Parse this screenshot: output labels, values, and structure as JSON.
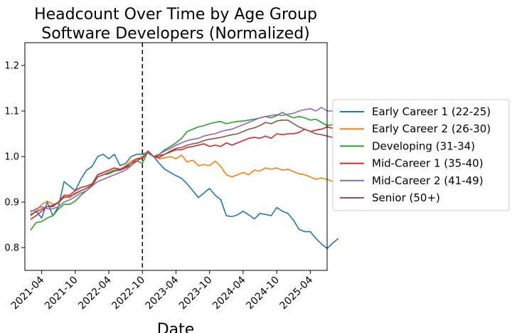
{
  "chart_data": {
    "type": "line",
    "title": "Headcount Over Time by Age Group",
    "subtitle": "Software Developers (Normalized)",
    "xlabel": "Date",
    "ylabel": "",
    "x_ticks": [
      "2021-04",
      "2021-10",
      "2022-04",
      "2022-10",
      "2023-04",
      "2023-10",
      "2024-04",
      "2024-10",
      "2025-04"
    ],
    "x_range": [
      "2021-01",
      "2025-07"
    ],
    "y_ticks": [
      "0.8",
      "0.9",
      "1.0",
      "1.1",
      "1.2"
    ],
    "ylim": [
      0.75,
      1.25
    ],
    "reference_line": {
      "x": "2022-10",
      "style": "dashed"
    },
    "grid": false,
    "legend_position": "outside-right",
    "series": [
      {
        "name": "Early Career 1 (22-25)",
        "color": "#1f77b4",
        "values": [
          0.87,
          0.88,
          0.865,
          0.9,
          0.87,
          0.89,
          0.945,
          0.935,
          0.925,
          0.95,
          0.97,
          0.978,
          1.0,
          1.005,
          0.995,
          1.005,
          0.98,
          0.985,
          1.0,
          1.005,
          1.005,
          1.01,
          1.0,
          0.985,
          0.972,
          0.965,
          0.958,
          0.952,
          0.94,
          0.925,
          0.91,
          0.92,
          0.93,
          0.915,
          0.905,
          0.87,
          0.868,
          0.872,
          0.88,
          0.872,
          0.863,
          0.875,
          0.873,
          0.87,
          0.888,
          0.88,
          0.875,
          0.86,
          0.84,
          0.835,
          0.835,
          0.82,
          0.808,
          0.798,
          0.81,
          0.82
        ]
      },
      {
        "name": "Early Career 2 (26-30)",
        "color": "#ff7f0e",
        "values": [
          0.882,
          0.88,
          0.895,
          0.902,
          0.895,
          0.897,
          0.912,
          0.91,
          0.92,
          0.925,
          0.93,
          0.935,
          0.96,
          0.965,
          0.97,
          0.975,
          0.97,
          0.98,
          0.99,
          0.995,
          1.0,
          1.012,
          1.0,
          0.995,
          0.997,
          1.0,
          0.995,
          1.003,
          0.988,
          0.992,
          0.98,
          0.982,
          0.98,
          0.99,
          0.978,
          0.96,
          0.955,
          0.96,
          0.965,
          0.96,
          0.97,
          0.968,
          0.975,
          0.972,
          0.975,
          0.97,
          0.972,
          0.967,
          0.962,
          0.96,
          0.955,
          0.95,
          0.953,
          0.95,
          0.945,
          0.955
        ]
      },
      {
        "name": "Developing (31-34)",
        "color": "#2ca02c",
        "values": [
          0.838,
          0.855,
          0.857,
          0.865,
          0.87,
          0.885,
          0.895,
          0.895,
          0.902,
          0.915,
          0.925,
          0.935,
          0.955,
          0.96,
          0.962,
          0.968,
          0.97,
          0.975,
          0.98,
          0.99,
          0.985,
          1.012,
          1.0,
          1.005,
          1.015,
          1.022,
          1.03,
          1.04,
          1.055,
          1.06,
          1.065,
          1.068,
          1.072,
          1.075,
          1.077,
          1.072,
          1.075,
          1.077,
          1.078,
          1.08,
          1.082,
          1.085,
          1.088,
          1.085,
          1.09,
          1.097,
          1.09,
          1.085,
          1.088,
          1.085,
          1.08,
          1.082,
          1.075,
          1.068,
          1.07,
          1.065
        ]
      },
      {
        "name": "Mid-Career 1 (35-40)",
        "color": "#d62728",
        "values": [
          0.862,
          0.87,
          0.88,
          0.89,
          0.89,
          0.9,
          0.915,
          0.915,
          0.925,
          0.932,
          0.935,
          0.94,
          0.96,
          0.965,
          0.97,
          0.975,
          0.972,
          0.978,
          0.985,
          0.995,
          0.995,
          1.012,
          1.0,
          0.998,
          1.005,
          1.01,
          1.015,
          1.015,
          1.02,
          1.022,
          1.025,
          1.028,
          1.022,
          1.025,
          1.022,
          1.03,
          1.025,
          1.03,
          1.035,
          1.04,
          1.042,
          1.04,
          1.045,
          1.04,
          1.05,
          1.048,
          1.05,
          1.05,
          1.053,
          1.06,
          1.055,
          1.058,
          1.06,
          1.065,
          1.062,
          1.072
        ]
      },
      {
        "name": "Mid-Career 2 (41-49)",
        "color": "#9467bd",
        "values": [
          0.878,
          0.885,
          0.89,
          0.885,
          0.885,
          0.89,
          0.9,
          0.905,
          0.912,
          0.92,
          0.925,
          0.935,
          0.945,
          0.95,
          0.955,
          0.96,
          0.965,
          0.97,
          0.98,
          0.99,
          0.998,
          1.01,
          1.0,
          1.005,
          1.012,
          1.018,
          1.025,
          1.03,
          1.035,
          1.038,
          1.04,
          1.045,
          1.048,
          1.05,
          1.055,
          1.058,
          1.06,
          1.065,
          1.07,
          1.075,
          1.08,
          1.085,
          1.088,
          1.09,
          1.092,
          1.09,
          1.093,
          1.095,
          1.1,
          1.103,
          1.105,
          1.1,
          1.108,
          1.1,
          1.1,
          1.105
        ]
      },
      {
        "name": "Senior (50+)",
        "color": "#8c564b",
        "values": [
          0.873,
          0.878,
          0.885,
          0.89,
          0.893,
          0.9,
          0.91,
          0.912,
          0.918,
          0.925,
          0.93,
          0.938,
          0.955,
          0.96,
          0.965,
          0.97,
          0.97,
          0.975,
          0.985,
          0.99,
          0.998,
          1.008,
          1.0,
          1.002,
          1.005,
          1.012,
          1.018,
          1.02,
          1.025,
          1.028,
          1.03,
          1.035,
          1.038,
          1.04,
          1.042,
          1.045,
          1.048,
          1.05,
          1.055,
          1.06,
          1.063,
          1.068,
          1.075,
          1.072,
          1.078,
          1.08,
          1.08,
          1.072,
          1.065,
          1.06,
          1.055,
          1.05,
          1.048,
          1.045,
          1.042,
          1.04
        ]
      }
    ]
  }
}
